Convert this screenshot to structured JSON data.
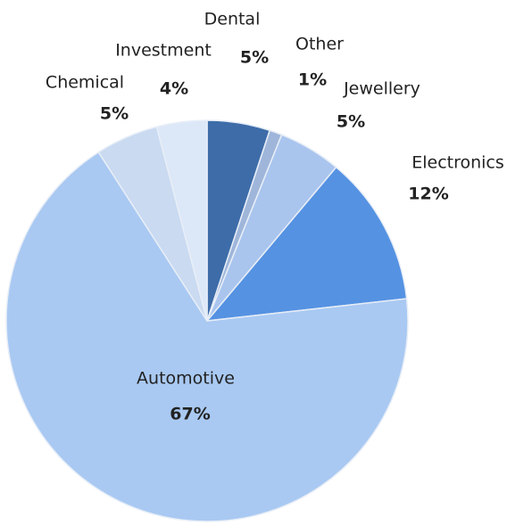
{
  "chart_data": {
    "type": "pie",
    "categories": [
      "Dental",
      "Other",
      "Jewellery",
      "Electronics",
      "Automotive",
      "Chemical",
      "Investment"
    ],
    "values": [
      5,
      1,
      5,
      12,
      67,
      5,
      4
    ],
    "value_labels": [
      "5%",
      "1%",
      "5%",
      "12%",
      "67%",
      "5%",
      "4%"
    ],
    "colors": [
      "#3d6ca9",
      "#9fb6da",
      "#a9c5ee",
      "#5592e2",
      "#a9c9f2",
      "#c9daf1",
      "#dce8f8"
    ]
  }
}
